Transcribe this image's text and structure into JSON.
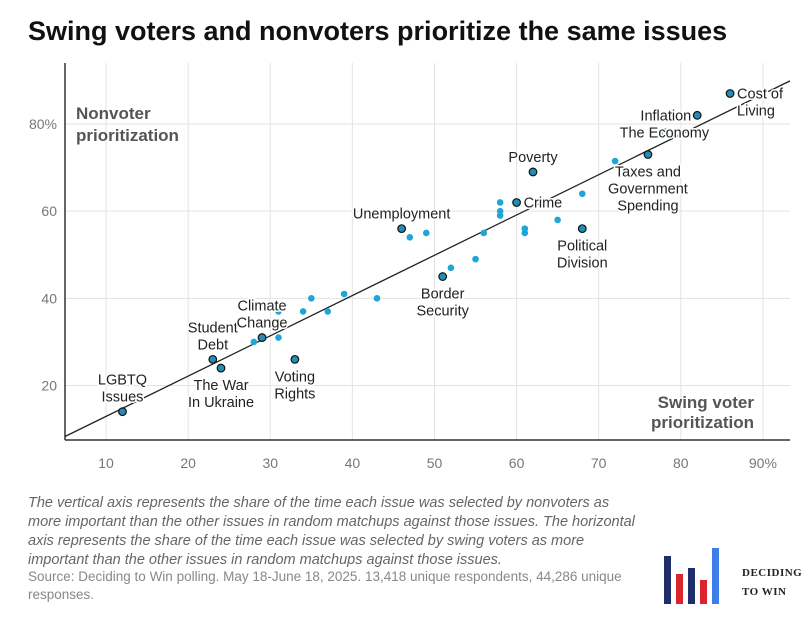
{
  "title": "Swing voters and nonvoters prioritize the same issues",
  "caption": "The vertical axis represents the share of the time each issue was selected by nonvoters as more important than the other issues in random matchups against those issues. The horizontal axis represents the share of the time each issue was selected by swing voters as more important than the other issues in random matchups against those issues.",
  "source": "Source: Deciding to Win polling. May 18-June 18, 2025. 13,418 unique respondents, 44,286 unique responses.",
  "logo": {
    "line1": "DECIDING",
    "line2": "TO WIN"
  },
  "colors": {
    "highlight": "#1f8fb8",
    "point": "#1ea6d6",
    "line": "#222222",
    "grid": "#e3e3e3"
  },
  "chart_data": {
    "type": "scatter",
    "title": "Swing voters and nonvoters prioritize the same issues",
    "xlabel": "Swing voter prioritization",
    "ylabel": "Nonvoter prioritization",
    "xlim": [
      5,
      93.3
    ],
    "ylim": [
      7.5,
      94
    ],
    "xticks": [
      {
        "v": 10,
        "label": "10"
      },
      {
        "v": 20,
        "label": "20"
      },
      {
        "v": 30,
        "label": "30"
      },
      {
        "v": 40,
        "label": "40"
      },
      {
        "v": 50,
        "label": "50"
      },
      {
        "v": 60,
        "label": "60"
      },
      {
        "v": 70,
        "label": "70"
      },
      {
        "v": 80,
        "label": "80"
      },
      {
        "v": 90,
        "label": "90%"
      }
    ],
    "yticks": [
      {
        "v": 20,
        "label": "20"
      },
      {
        "v": 40,
        "label": "40"
      },
      {
        "v": 60,
        "label": "60"
      },
      {
        "v": 80,
        "label": "80%"
      }
    ],
    "grid": true,
    "trendline": {
      "x": [
        5,
        93.3
      ],
      "y": [
        8.3,
        89.9
      ]
    },
    "highlighted": [
      {
        "label": [
          "LGBTQ",
          "Issues"
        ],
        "x": 12,
        "y": 14,
        "pos": "above"
      },
      {
        "label": [
          "Student",
          "Debt"
        ],
        "x": 23,
        "y": 26,
        "pos": "above"
      },
      {
        "label": [
          "The War",
          "In Ukraine"
        ],
        "x": 24,
        "y": 24,
        "pos": "below"
      },
      {
        "label": [
          "Climate",
          "Change"
        ],
        "x": 29,
        "y": 31,
        "pos": "above"
      },
      {
        "label": [
          "Voting",
          "Rights"
        ],
        "x": 33,
        "y": 26,
        "pos": "below"
      },
      {
        "label": [
          "Border",
          "Security"
        ],
        "x": 51,
        "y": 45,
        "pos": "below"
      },
      {
        "label": [
          "Unemployment"
        ],
        "x": 46,
        "y": 56,
        "pos": "above"
      },
      {
        "label": [
          "Poverty"
        ],
        "x": 62,
        "y": 69,
        "pos": "above"
      },
      {
        "label": [
          "Crime"
        ],
        "x": 60,
        "y": 62,
        "pos": "right"
      },
      {
        "label": [
          "Political",
          "Division"
        ],
        "x": 68,
        "y": 56,
        "pos": "below"
      },
      {
        "label": [
          "Taxes and",
          "Government",
          "Spending"
        ],
        "x": 76,
        "y": 73,
        "pos": "below"
      },
      {
        "label": [
          "The Economy"
        ],
        "x": 78,
        "y": 78,
        "pos": "on"
      },
      {
        "label": [
          "Inflation"
        ],
        "x": 82,
        "y": 82,
        "pos": "left"
      },
      {
        "label": [
          "Cost of",
          "Living"
        ],
        "x": 86,
        "y": 87,
        "pos": "right"
      }
    ],
    "others": [
      [
        28,
        30
      ],
      [
        31,
        31
      ],
      [
        31,
        37
      ],
      [
        34,
        37
      ],
      [
        35,
        40
      ],
      [
        37,
        37
      ],
      [
        39,
        41
      ],
      [
        43,
        40
      ],
      [
        47,
        54
      ],
      [
        49,
        55
      ],
      [
        52,
        47
      ],
      [
        55,
        49
      ],
      [
        56,
        55
      ],
      [
        58,
        62
      ],
      [
        58,
        60
      ],
      [
        58,
        59
      ],
      [
        61,
        56
      ],
      [
        61,
        55
      ],
      [
        65,
        58
      ],
      [
        68,
        64
      ],
      [
        72,
        71.5
      ]
    ]
  }
}
